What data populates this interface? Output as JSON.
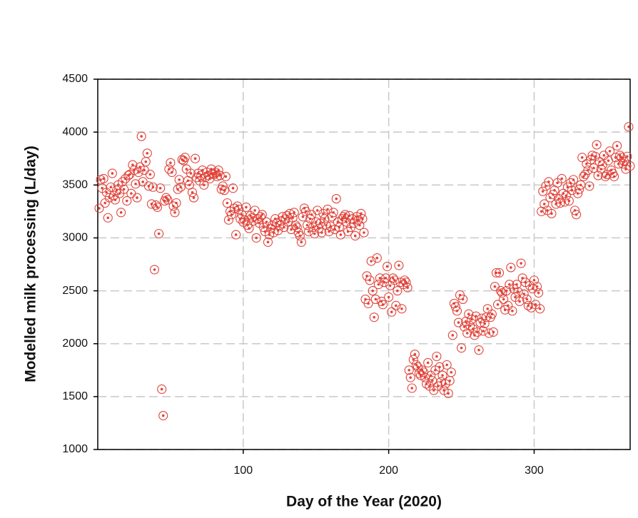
{
  "chart_data": {
    "type": "scatter",
    "x_label": "Day of the Year (2020)",
    "y_label": "Modelled milk processing (L/day)",
    "xlim": [
      0,
      366
    ],
    "ylim": [
      1000,
      4500
    ],
    "xticks": [
      100,
      200,
      300
    ],
    "yticks": [
      1000,
      1500,
      2000,
      2500,
      3000,
      3500,
      4000,
      4500
    ],
    "grid": true,
    "series": [
      {
        "color": "#e0433a",
        "x": [
          1,
          2,
          3,
          4,
          5,
          6,
          7,
          8,
          9,
          10,
          11,
          12,
          13,
          14,
          15,
          16,
          17,
          18,
          19,
          20,
          21,
          22,
          23,
          24,
          25,
          26,
          27,
          28,
          29,
          30,
          31,
          32,
          33,
          34,
          35,
          36,
          37,
          38,
          39,
          40,
          41,
          42,
          43,
          44,
          45,
          46,
          47,
          48,
          49,
          50,
          51,
          52,
          53,
          54,
          55,
          56,
          57,
          58,
          59,
          60,
          61,
          62,
          63,
          64,
          65,
          66,
          67,
          68,
          69,
          70,
          71,
          72,
          73,
          74,
          75,
          76,
          77,
          78,
          79,
          80,
          81,
          82,
          83,
          84,
          85,
          86,
          87,
          88,
          89,
          90,
          91,
          92,
          93,
          94,
          95,
          96,
          97,
          98,
          99,
          100,
          101,
          102,
          103,
          104,
          105,
          106,
          107,
          108,
          109,
          110,
          111,
          112,
          113,
          114,
          115,
          116,
          117,
          118,
          119,
          120,
          121,
          122,
          123,
          124,
          125,
          126,
          127,
          128,
          129,
          130,
          131,
          132,
          133,
          134,
          135,
          136,
          137,
          138,
          139,
          140,
          141,
          142,
          143,
          144,
          145,
          146,
          147,
          148,
          149,
          150,
          151,
          152,
          153,
          154,
          155,
          156,
          157,
          158,
          159,
          160,
          161,
          162,
          163,
          164,
          165,
          166,
          167,
          168,
          169,
          170,
          171,
          172,
          173,
          174,
          175,
          176,
          177,
          178,
          179,
          180,
          181,
          182,
          183,
          184,
          185,
          186,
          187,
          188,
          189,
          190,
          191,
          192,
          193,
          194,
          195,
          196,
          197,
          198,
          199,
          200,
          201,
          202,
          203,
          204,
          205,
          206,
          207,
          208,
          209,
          210,
          211,
          212,
          213,
          214,
          215,
          216,
          217,
          218,
          219,
          220,
          221,
          222,
          223,
          224,
          225,
          226,
          227,
          228,
          229,
          230,
          231,
          232,
          233,
          234,
          235,
          236,
          237,
          238,
          239,
          240,
          241,
          242,
          243,
          244,
          245,
          246,
          247,
          248,
          249,
          250,
          251,
          252,
          253,
          254,
          255,
          256,
          257,
          258,
          259,
          260,
          261,
          262,
          263,
          264,
          265,
          266,
          267,
          268,
          269,
          270,
          271,
          272,
          273,
          274,
          275,
          276,
          277,
          278,
          279,
          280,
          281,
          282,
          283,
          284,
          285,
          286,
          287,
          288,
          289,
          290,
          291,
          292,
          293,
          294,
          295,
          296,
          297,
          298,
          299,
          300,
          301,
          302,
          303,
          304,
          305,
          306,
          307,
          308,
          309,
          310,
          311,
          312,
          313,
          314,
          315,
          316,
          317,
          318,
          319,
          320,
          321,
          322,
          323,
          324,
          325,
          326,
          327,
          328,
          329,
          330,
          331,
          332,
          333,
          334,
          335,
          336,
          337,
          338,
          339,
          340,
          341,
          342,
          343,
          344,
          345,
          346,
          347,
          348,
          349,
          350,
          351,
          352,
          353,
          354,
          355,
          356,
          357,
          358,
          359,
          360,
          361,
          362,
          363,
          364,
          365,
          366
        ],
        "values": [
          3280,
          3550,
          3470,
          3560,
          3330,
          3430,
          3190,
          3380,
          3480,
          3610,
          3400,
          3360,
          3450,
          3500,
          3420,
          3240,
          3530,
          3460,
          3560,
          3350,
          3590,
          3600,
          3420,
          3690,
          3640,
          3510,
          3380,
          3620,
          3670,
          3960,
          3530,
          3640,
          3720,
          3800,
          3490,
          3600,
          3320,
          3480,
          2700,
          3310,
          3290,
          3040,
          3470,
          1570,
          1320,
          3350,
          3380,
          3360,
          3650,
          3710,
          3620,
          3300,
          3240,
          3330,
          3460,
          3550,
          3480,
          3740,
          3730,
          3760,
          3650,
          3540,
          3500,
          3610,
          3430,
          3380,
          3750,
          3570,
          3610,
          3540,
          3590,
          3640,
          3500,
          3570,
          3620,
          3590,
          3560,
          3650,
          3610,
          3600,
          3620,
          3580,
          3640,
          3590,
          3460,
          3490,
          3450,
          3580,
          3330,
          3170,
          3250,
          3220,
          3470,
          3280,
          3030,
          3300,
          3270,
          3180,
          3220,
          3150,
          3170,
          3290,
          3120,
          3090,
          3210,
          3190,
          3160,
          3260,
          3000,
          3180,
          3140,
          3200,
          3220,
          3100,
          3060,
          3150,
          2960,
          3030,
          3090,
          3120,
          3050,
          3180,
          3140,
          3070,
          3120,
          3160,
          3200,
          3100,
          3180,
          3210,
          3150,
          3230,
          3080,
          3190,
          3240,
          3120,
          3100,
          3050,
          3020,
          2960,
          3200,
          3280,
          3250,
          3120,
          3060,
          3180,
          3220,
          3100,
          3040,
          3150,
          3260,
          3090,
          3140,
          3050,
          3230,
          3180,
          3120,
          3270,
          3060,
          3110,
          3200,
          3240,
          3080,
          3370,
          3150,
          3100,
          3030,
          3180,
          3200,
          3220,
          3150,
          3060,
          3210,
          3100,
          3180,
          3140,
          3020,
          3200,
          3170,
          3120,
          3230,
          3180,
          3050,
          2420,
          2640,
          2380,
          2600,
          2780,
          2500,
          2250,
          2420,
          2810,
          2560,
          2620,
          2400,
          2370,
          2580,
          2620,
          2730,
          2440,
          2550,
          2300,
          2620,
          2600,
          2360,
          2500,
          2740,
          2580,
          2330,
          2560,
          2600,
          2580,
          2530,
          1750,
          1680,
          1580,
          1850,
          1900,
          1800,
          1780,
          1720,
          1700,
          1750,
          1730,
          1680,
          1620,
          1820,
          1600,
          1700,
          1650,
          1560,
          1750,
          1880,
          1600,
          1780,
          1640,
          1700,
          1560,
          1620,
          1800,
          1530,
          1650,
          1730,
          2080,
          2380,
          2350,
          2310,
          2200,
          2460,
          1960,
          2420,
          2160,
          2210,
          2100,
          2280,
          2170,
          2230,
          2140,
          2080,
          2260,
          2110,
          1940,
          2200,
          2240,
          2120,
          2190,
          2250,
          2330,
          2100,
          2250,
          2280,
          2110,
          2540,
          2670,
          2370,
          2670,
          2500,
          2480,
          2420,
          2320,
          2500,
          2360,
          2560,
          2720,
          2310,
          2520,
          2440,
          2560,
          2490,
          2400,
          2760,
          2620,
          2470,
          2580,
          2420,
          2360,
          2550,
          2340,
          2520,
          2600,
          2370,
          2540,
          2480,
          2330,
          3250,
          3440,
          3320,
          3490,
          3260,
          3530,
          3380,
          3230,
          3410,
          3450,
          3320,
          3520,
          3370,
          3330,
          3560,
          3420,
          3340,
          3400,
          3480,
          3350,
          3520,
          3450,
          3550,
          3260,
          3220,
          3420,
          3460,
          3500,
          3760,
          3580,
          3600,
          3700,
          3640,
          3490,
          3740,
          3780,
          3660,
          3770,
          3880,
          3590,
          3720,
          3650,
          3690,
          3780,
          3580,
          3600,
          3730,
          3820,
          3640,
          3610,
          3580,
          3760,
          3870,
          3700,
          3780,
          3760,
          3700,
          3720,
          3650,
          3770,
          4050,
          3680
        ]
      }
    ]
  }
}
